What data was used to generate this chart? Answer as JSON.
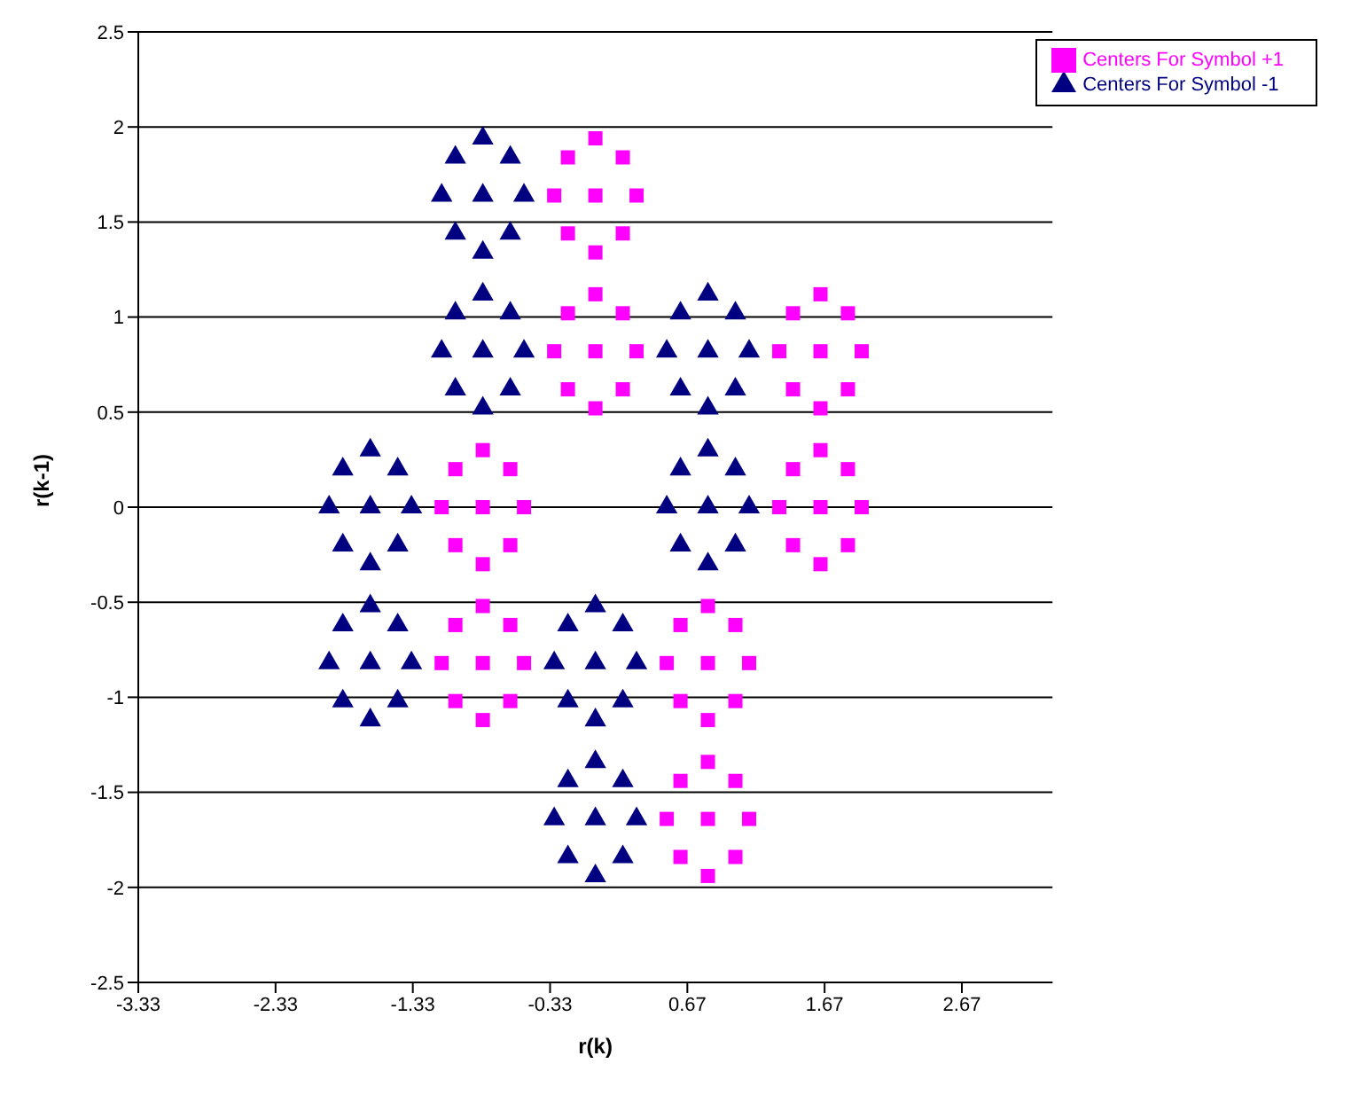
{
  "chart_data": {
    "type": "scatter",
    "xlabel": "r(k)",
    "ylabel": "r(k-1)",
    "xlim": [
      -3.33,
      3.33
    ],
    "xticks": [
      -3.33,
      -2.33,
      -1.33,
      -0.33,
      0.67,
      1.67,
      2.67
    ],
    "ylim": [
      -2.5,
      2.5
    ],
    "yticks": [
      -2.5,
      -2,
      -1.5,
      -1,
      -0.5,
      0,
      0.5,
      1,
      1.5,
      2,
      2.5
    ],
    "grid": "y",
    "legend": "top right",
    "series": [
      {
        "name": "Centers For Symbol -1",
        "color": "#000080",
        "marker": "triangle",
        "x": [
          -0.82,
          -0.52,
          -1.12,
          -0.82,
          -0.82,
          -0.62,
          -0.62,
          -1.02,
          -1.02,
          -0.82,
          -0.52,
          -1.12,
          -0.82,
          -0.82,
          -0.62,
          -0.62,
          -1.02,
          -1.02,
          0.82,
          1.12,
          0.52,
          0.82,
          0.82,
          1.02,
          1.02,
          0.62,
          0.62,
          -1.64,
          -1.34,
          -1.94,
          -1.64,
          -1.64,
          -1.44,
          -1.44,
          -1.84,
          -1.84,
          0.82,
          1.12,
          0.52,
          0.82,
          0.82,
          1.02,
          1.02,
          0.62,
          0.62,
          -1.64,
          -1.34,
          -1.94,
          -1.64,
          -1.64,
          -1.44,
          -1.44,
          -1.84,
          -1.84,
          0,
          0.3,
          -0.3,
          0,
          0,
          0.2,
          0.2,
          -0.2,
          -0.2,
          0,
          0.3,
          -0.3,
          0,
          0,
          0.2,
          0.2,
          -0.2,
          -0.2
        ],
        "values": [
          1.64,
          1.64,
          1.64,
          1.94,
          1.34,
          1.84,
          1.44,
          1.84,
          1.44,
          0.82,
          0.82,
          0.82,
          1.12,
          0.52,
          1.02,
          0.62,
          1.02,
          0.62,
          0.82,
          0.82,
          0.82,
          1.12,
          0.52,
          1.02,
          0.62,
          1.02,
          0.62,
          0,
          0,
          0,
          0.3,
          -0.3,
          0.2,
          -0.2,
          0.2,
          -0.2,
          0,
          0,
          0,
          0.3,
          -0.3,
          0.2,
          -0.2,
          0.2,
          -0.2,
          -0.82,
          -0.82,
          -0.82,
          -0.52,
          -1.12,
          -0.62,
          -1.02,
          -0.62,
          -1.02,
          -0.82,
          -0.82,
          -0.82,
          -0.52,
          -1.12,
          -0.62,
          -1.02,
          -0.62,
          -1.02,
          -1.64,
          -1.64,
          -1.64,
          -1.34,
          -1.94,
          -1.44,
          -1.84,
          -1.44,
          -1.84
        ]
      },
      {
        "name": "Centers For Symbol +1",
        "color": "#ff00ff",
        "marker": "square",
        "x": [
          0,
          0.3,
          -0.3,
          0,
          0,
          0.2,
          0.2,
          -0.2,
          -0.2,
          0,
          0.3,
          -0.3,
          0,
          0,
          0.2,
          0.2,
          -0.2,
          -0.2,
          1.64,
          1.94,
          1.34,
          1.64,
          1.64,
          1.84,
          1.84,
          1.44,
          1.44,
          -0.82,
          -0.52,
          -1.12,
          -0.82,
          -0.82,
          -0.62,
          -0.62,
          -1.02,
          -1.02,
          1.64,
          1.94,
          1.34,
          1.64,
          1.64,
          1.84,
          1.84,
          1.44,
          1.44,
          -0.82,
          -0.52,
          -1.12,
          -0.82,
          -0.82,
          -0.62,
          -0.62,
          -1.02,
          -1.02,
          0.82,
          1.12,
          0.52,
          0.82,
          0.82,
          1.02,
          1.02,
          0.62,
          0.62,
          0.82,
          1.12,
          0.52,
          0.82,
          0.82,
          1.02,
          1.02,
          0.62,
          0.62
        ],
        "values": [
          1.64,
          1.64,
          1.64,
          1.94,
          1.34,
          1.84,
          1.44,
          1.84,
          1.44,
          0.82,
          0.82,
          0.82,
          1.12,
          0.52,
          1.02,
          0.62,
          1.02,
          0.62,
          0.82,
          0.82,
          0.82,
          1.12,
          0.52,
          1.02,
          0.62,
          1.02,
          0.62,
          0,
          0,
          0,
          0.3,
          -0.3,
          0.2,
          -0.2,
          0.2,
          -0.2,
          0,
          0,
          0,
          0.3,
          -0.3,
          0.2,
          -0.2,
          0.2,
          -0.2,
          -0.82,
          -0.82,
          -0.82,
          -0.52,
          -1.12,
          -0.62,
          -1.02,
          -0.62,
          -1.02,
          -0.82,
          -0.82,
          -0.82,
          -0.52,
          -1.12,
          -0.62,
          -1.02,
          -0.62,
          -1.02,
          -1.64,
          -1.64,
          -1.64,
          -1.34,
          -1.94,
          -1.44,
          -1.84,
          -1.44,
          -1.84
        ]
      }
    ]
  }
}
